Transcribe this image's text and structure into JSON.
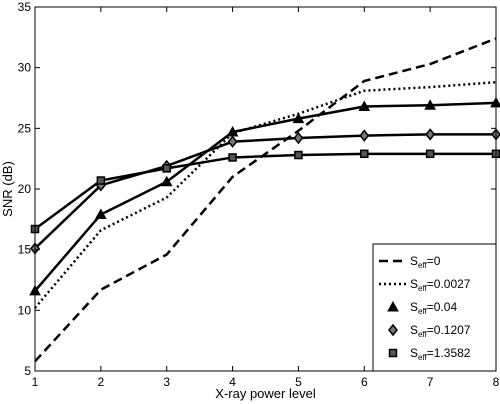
{
  "chart_data": {
    "type": "line",
    "title": "",
    "xlabel": "X-ray power level",
    "ylabel": "SNR (dB)",
    "x": [
      1,
      2,
      3,
      4,
      5,
      6,
      7,
      8
    ],
    "xlim": [
      1,
      8
    ],
    "ylim": [
      5,
      35
    ],
    "xticks": [
      "1",
      "2",
      "3",
      "4",
      "5",
      "6",
      "7",
      "8"
    ],
    "yticks": [
      "5",
      "10",
      "15",
      "20",
      "25",
      "30",
      "35"
    ],
    "grid": false,
    "legend_position": "bottom-right",
    "series": [
      {
        "name_main": "S",
        "name_sub": "eff",
        "name_tail": "=0",
        "style": "dashed",
        "marker": "none",
        "values": [
          5.8,
          11.7,
          14.6,
          21.0,
          24.8,
          28.9,
          30.3,
          32.4
        ]
      },
      {
        "name_main": "S",
        "name_sub": "eff",
        "name_tail": "=0.0027",
        "style": "dotted",
        "marker": "none",
        "values": [
          10.2,
          16.6,
          19.3,
          24.6,
          26.2,
          28.1,
          28.4,
          28.8
        ]
      },
      {
        "name_main": "S",
        "name_sub": "eff",
        "name_tail": "=0.04",
        "style": "solid",
        "marker": "triangle",
        "values": [
          11.6,
          17.9,
          20.6,
          24.7,
          25.8,
          26.8,
          26.9,
          27.1
        ]
      },
      {
        "name_main": "S",
        "name_sub": "eff",
        "name_tail": "=0.1207",
        "style": "solid",
        "marker": "diamond",
        "values": [
          15.1,
          20.3,
          21.9,
          23.9,
          24.2,
          24.4,
          24.5,
          24.5
        ]
      },
      {
        "name_main": "S",
        "name_sub": "eff",
        "name_tail": "=1.3582",
        "style": "solid",
        "marker": "square",
        "values": [
          16.7,
          20.7,
          21.7,
          22.6,
          22.8,
          22.9,
          22.9,
          22.9
        ]
      }
    ]
  }
}
